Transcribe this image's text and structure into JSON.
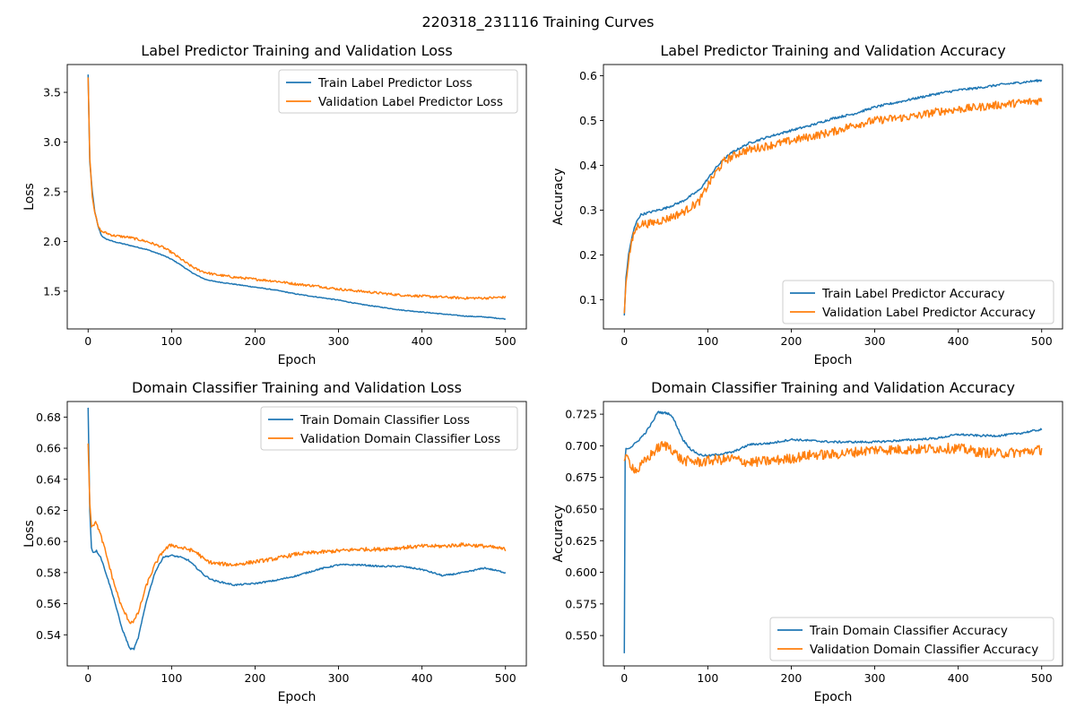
{
  "figure": {
    "suptitle": "220318_231116 Training Curves"
  },
  "colors": {
    "train": "#1f77b4",
    "validation": "#ff7f0e",
    "axes": "#000000",
    "legend_border": "#cccccc"
  },
  "chart_data": [
    {
      "type": "line",
      "title": "Label Predictor Training and Validation Loss",
      "xlabel": "Epoch",
      "ylabel": "Loss",
      "xlim": [
        -25,
        525
      ],
      "ylim": [
        1.12,
        3.78
      ],
      "xticks": [
        0,
        100,
        200,
        300,
        400,
        500
      ],
      "xtick_labels": [
        "0",
        "100",
        "200",
        "300",
        "400",
        "500"
      ],
      "yticks": [
        1.5,
        2.0,
        2.5,
        3.0,
        3.5
      ],
      "ytick_labels": [
        "1.5",
        "2.0",
        "2.5",
        "3.0",
        "3.5"
      ],
      "grid": false,
      "legend_position": "upper-right",
      "series": [
        {
          "name": "Train Label Predictor Loss",
          "color": "#1f77b4",
          "x": [
            0,
            2,
            5,
            8,
            12,
            16,
            20,
            30,
            50,
            70,
            90,
            100,
            110,
            120,
            130,
            140,
            150,
            175,
            200,
            225,
            250,
            275,
            300,
            325,
            350,
            375,
            400,
            425,
            450,
            475,
            500
          ],
          "y": [
            3.68,
            2.8,
            2.5,
            2.3,
            2.15,
            2.06,
            2.03,
            2.0,
            1.96,
            1.92,
            1.86,
            1.82,
            1.77,
            1.71,
            1.66,
            1.62,
            1.6,
            1.57,
            1.54,
            1.51,
            1.47,
            1.44,
            1.41,
            1.37,
            1.34,
            1.31,
            1.29,
            1.27,
            1.25,
            1.24,
            1.22
          ]
        },
        {
          "name": "Validation Label Predictor Loss",
          "color": "#ff7f0e",
          "x": [
            0,
            2,
            5,
            8,
            12,
            16,
            20,
            30,
            50,
            70,
            90,
            100,
            110,
            120,
            130,
            140,
            150,
            175,
            200,
            225,
            250,
            275,
            300,
            325,
            350,
            375,
            400,
            425,
            450,
            475,
            500
          ],
          "y": [
            3.65,
            2.85,
            2.45,
            2.3,
            2.15,
            2.1,
            2.09,
            2.06,
            2.04,
            2.0,
            1.94,
            1.89,
            1.83,
            1.77,
            1.72,
            1.69,
            1.67,
            1.64,
            1.62,
            1.6,
            1.57,
            1.55,
            1.52,
            1.5,
            1.48,
            1.46,
            1.45,
            1.44,
            1.43,
            1.43,
            1.44
          ]
        }
      ]
    },
    {
      "type": "line",
      "title": "Label Predictor Training and Validation Accuracy",
      "xlabel": "Epoch",
      "ylabel": "Accuracy",
      "xlim": [
        -25,
        525
      ],
      "ylim": [
        0.035,
        0.625
      ],
      "xticks": [
        0,
        100,
        200,
        300,
        400,
        500
      ],
      "xtick_labels": [
        "0",
        "100",
        "200",
        "300",
        "400",
        "500"
      ],
      "yticks": [
        0.1,
        0.2,
        0.3,
        0.4,
        0.5,
        0.6
      ],
      "ytick_labels": [
        "0.1",
        "0.2",
        "0.3",
        "0.4",
        "0.5",
        "0.6"
      ],
      "grid": false,
      "legend_position": "lower-right",
      "series": [
        {
          "name": "Train Label Predictor Accuracy",
          "color": "#1f77b4",
          "x": [
            0,
            2,
            5,
            8,
            12,
            16,
            20,
            30,
            50,
            70,
            90,
            100,
            110,
            120,
            130,
            140,
            150,
            175,
            200,
            225,
            250,
            275,
            300,
            325,
            350,
            375,
            400,
            425,
            450,
            475,
            500
          ],
          "y": [
            0.065,
            0.15,
            0.2,
            0.23,
            0.26,
            0.28,
            0.29,
            0.295,
            0.305,
            0.32,
            0.345,
            0.37,
            0.395,
            0.415,
            0.43,
            0.44,
            0.45,
            0.465,
            0.478,
            0.49,
            0.505,
            0.515,
            0.53,
            0.54,
            0.55,
            0.56,
            0.568,
            0.573,
            0.58,
            0.585,
            0.59
          ]
        },
        {
          "name": "Validation Label Predictor Accuracy",
          "color": "#ff7f0e",
          "x": [
            0,
            2,
            5,
            8,
            12,
            16,
            20,
            30,
            50,
            70,
            90,
            100,
            110,
            120,
            130,
            140,
            150,
            175,
            200,
            225,
            250,
            275,
            300,
            325,
            350,
            375,
            400,
            425,
            450,
            475,
            500
          ],
          "y": [
            0.07,
            0.14,
            0.19,
            0.22,
            0.25,
            0.265,
            0.27,
            0.27,
            0.28,
            0.295,
            0.32,
            0.355,
            0.385,
            0.41,
            0.42,
            0.43,
            0.435,
            0.445,
            0.455,
            0.465,
            0.475,
            0.49,
            0.5,
            0.505,
            0.51,
            0.52,
            0.525,
            0.53,
            0.535,
            0.54,
            0.545
          ]
        }
      ]
    },
    {
      "type": "line",
      "title": "Domain Classifier Training and Validation Loss",
      "xlabel": "Epoch",
      "ylabel": "Loss",
      "xlim": [
        -25,
        525
      ],
      "ylim": [
        0.52,
        0.69
      ],
      "xticks": [
        0,
        100,
        200,
        300,
        400,
        500
      ],
      "xtick_labels": [
        "0",
        "100",
        "200",
        "300",
        "400",
        "500"
      ],
      "yticks": [
        0.54,
        0.56,
        0.58,
        0.6,
        0.62,
        0.64,
        0.66,
        0.68
      ],
      "ytick_labels": [
        "0.54",
        "0.56",
        "0.58",
        "0.60",
        "0.62",
        "0.64",
        "0.66",
        "0.68"
      ],
      "grid": false,
      "legend_position": "upper-right",
      "series": [
        {
          "name": "Train Domain Classifier Loss",
          "color": "#1f77b4",
          "x": [
            0,
            2,
            4,
            6,
            10,
            15,
            20,
            30,
            40,
            50,
            55,
            60,
            70,
            80,
            90,
            100,
            110,
            120,
            130,
            140,
            150,
            175,
            200,
            225,
            250,
            275,
            300,
            325,
            350,
            375,
            400,
            425,
            450,
            475,
            500
          ],
          "y": [
            0.686,
            0.62,
            0.596,
            0.593,
            0.594,
            0.59,
            0.582,
            0.565,
            0.545,
            0.531,
            0.531,
            0.538,
            0.562,
            0.58,
            0.59,
            0.591,
            0.59,
            0.588,
            0.583,
            0.578,
            0.575,
            0.572,
            0.573,
            0.575,
            0.578,
            0.582,
            0.585,
            0.585,
            0.584,
            0.584,
            0.582,
            0.578,
            0.58,
            0.583,
            0.58
          ]
        },
        {
          "name": "Validation Domain Classifier Loss",
          "color": "#ff7f0e",
          "x": [
            0,
            2,
            4,
            6,
            10,
            15,
            20,
            30,
            40,
            50,
            55,
            60,
            70,
            80,
            90,
            100,
            110,
            120,
            130,
            140,
            150,
            175,
            200,
            225,
            250,
            275,
            300,
            325,
            350,
            375,
            400,
            425,
            450,
            475,
            500
          ],
          "y": [
            0.663,
            0.625,
            0.61,
            0.611,
            0.612,
            0.604,
            0.595,
            0.575,
            0.558,
            0.548,
            0.549,
            0.554,
            0.572,
            0.585,
            0.594,
            0.598,
            0.596,
            0.595,
            0.593,
            0.588,
            0.586,
            0.585,
            0.587,
            0.589,
            0.592,
            0.593,
            0.594,
            0.595,
            0.595,
            0.596,
            0.597,
            0.597,
            0.598,
            0.597,
            0.595
          ]
        }
      ]
    },
    {
      "type": "line",
      "title": "Domain Classifier Training and Validation Accuracy",
      "xlabel": "Epoch",
      "ylabel": "Accuracy",
      "xlim": [
        -25,
        525
      ],
      "ylim": [
        0.526,
        0.735
      ],
      "xticks": [
        0,
        100,
        200,
        300,
        400,
        500
      ],
      "xtick_labels": [
        "0",
        "100",
        "200",
        "300",
        "400",
        "500"
      ],
      "yticks": [
        0.55,
        0.575,
        0.6,
        0.625,
        0.65,
        0.675,
        0.7,
        0.725
      ],
      "ytick_labels": [
        "0.550",
        "0.575",
        "0.600",
        "0.625",
        "0.650",
        "0.675",
        "0.700",
        "0.725"
      ],
      "grid": false,
      "legend_position": "lower-right",
      "series": [
        {
          "name": "Train Domain Classifier Accuracy",
          "color": "#1f77b4",
          "x": [
            0,
            1,
            2,
            4,
            8,
            15,
            25,
            35,
            40,
            45,
            50,
            55,
            60,
            70,
            80,
            90,
            100,
            110,
            120,
            130,
            140,
            150,
            175,
            200,
            225,
            250,
            275,
            300,
            325,
            350,
            375,
            400,
            425,
            450,
            475,
            500
          ],
          "y": [
            0.536,
            0.69,
            0.698,
            0.698,
            0.699,
            0.703,
            0.71,
            0.72,
            0.727,
            0.726,
            0.726,
            0.725,
            0.72,
            0.705,
            0.697,
            0.693,
            0.692,
            0.693,
            0.694,
            0.695,
            0.698,
            0.701,
            0.702,
            0.705,
            0.704,
            0.703,
            0.703,
            0.703,
            0.704,
            0.705,
            0.706,
            0.709,
            0.708,
            0.708,
            0.71,
            0.713
          ]
        },
        {
          "name": "Validation Domain Classifier Accuracy",
          "color": "#ff7f0e",
          "x": [
            0,
            1,
            2,
            4,
            8,
            15,
            25,
            35,
            40,
            45,
            50,
            55,
            60,
            70,
            80,
            90,
            100,
            110,
            120,
            130,
            140,
            150,
            175,
            200,
            225,
            250,
            275,
            300,
            325,
            350,
            375,
            400,
            425,
            450,
            475,
            500
          ],
          "y": [
            0.688,
            0.69,
            0.689,
            0.69,
            0.685,
            0.68,
            0.688,
            0.695,
            0.698,
            0.7,
            0.7,
            0.699,
            0.695,
            0.688,
            0.688,
            0.687,
            0.688,
            0.689,
            0.689,
            0.69,
            0.688,
            0.687,
            0.688,
            0.69,
            0.693,
            0.693,
            0.695,
            0.697,
            0.697,
            0.697,
            0.698,
            0.698,
            0.695,
            0.694,
            0.695,
            0.697
          ]
        }
      ]
    }
  ]
}
